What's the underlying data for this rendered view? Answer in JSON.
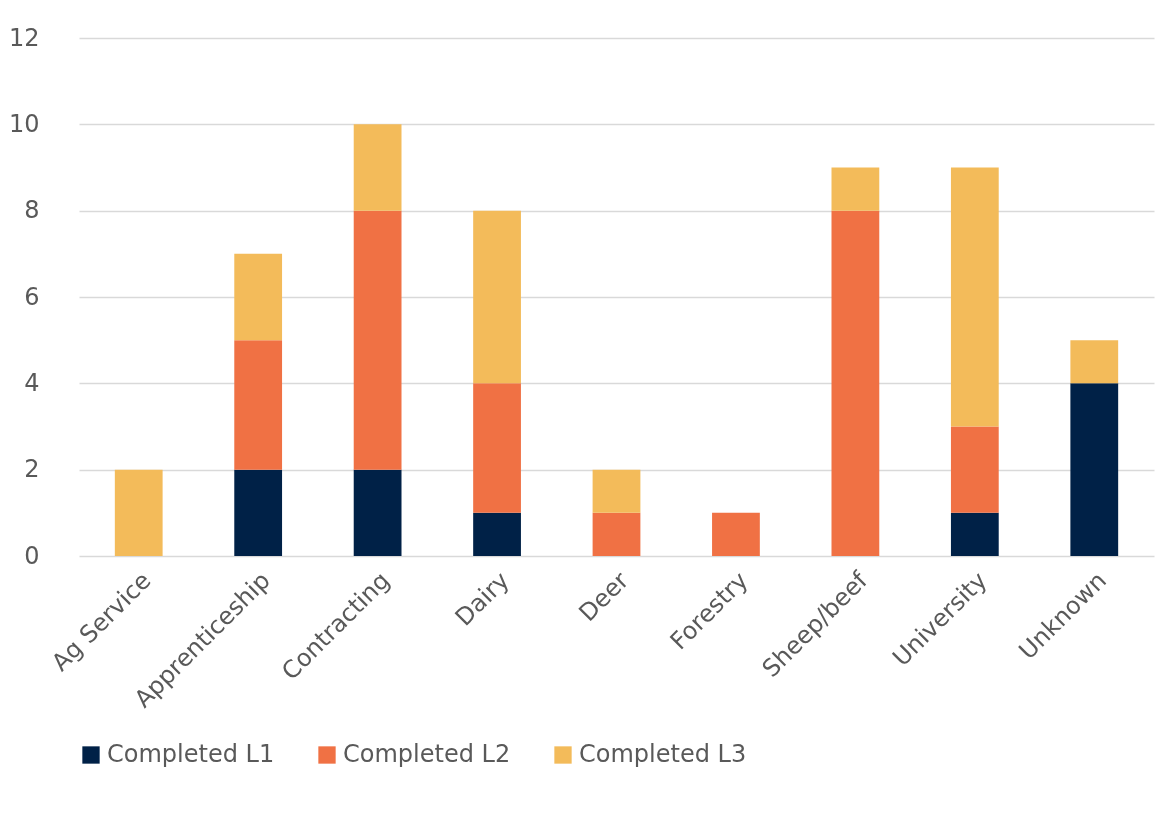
{
  "chart_data": {
    "type": "bar",
    "stacked": true,
    "categories": [
      "Ag Service",
      "Apprenticeship",
      "Contracting",
      "Dairy",
      "Deer",
      "Forestry",
      "Sheep/beef",
      "University",
      "Unknown"
    ],
    "series": [
      {
        "name": "Completed L1",
        "color": "#002147",
        "values": [
          0,
          2,
          2,
          1,
          0,
          0,
          0,
          1,
          4
        ]
      },
      {
        "name": "Completed L2",
        "color": "#f07144",
        "values": [
          0,
          3,
          6,
          3,
          1,
          1,
          8,
          2,
          0
        ]
      },
      {
        "name": "Completed L3",
        "color": "#f3bb5a",
        "values": [
          2,
          2,
          2,
          4,
          1,
          0,
          1,
          6,
          1
        ]
      }
    ],
    "ylim": [
      0,
      12
    ],
    "yticks": [
      0,
      2,
      4,
      6,
      8,
      10,
      12
    ],
    "grid": "y",
    "legend": "bottom"
  }
}
